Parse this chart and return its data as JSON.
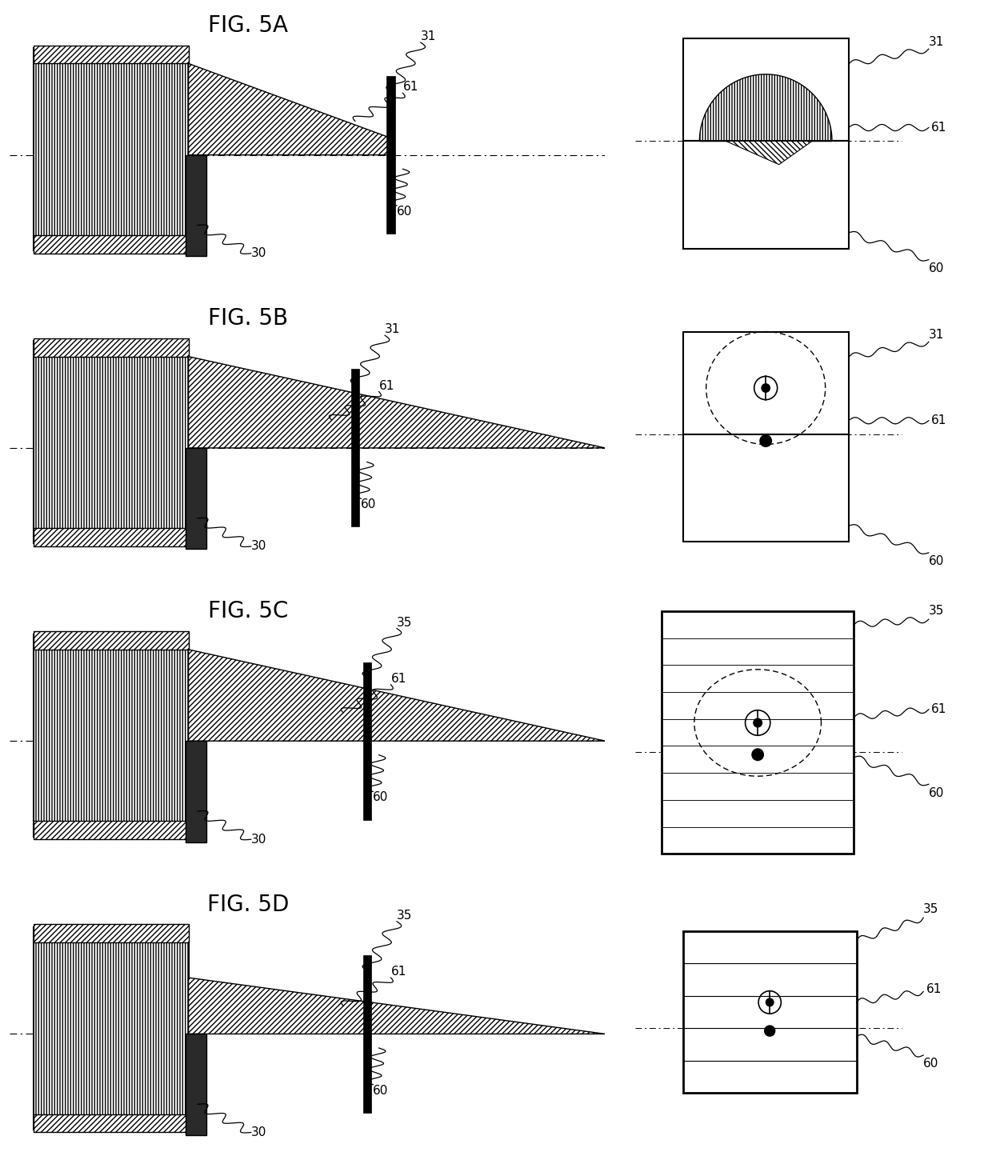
{
  "bg_color": "#ffffff",
  "figures": [
    "FIG. 5A",
    "FIG. 5B",
    "FIG. 5C",
    "FIG. 5D"
  ],
  "top_labels": [
    "31",
    "31",
    "35",
    "35"
  ],
  "font_size_title": 20,
  "font_size_label": 11
}
